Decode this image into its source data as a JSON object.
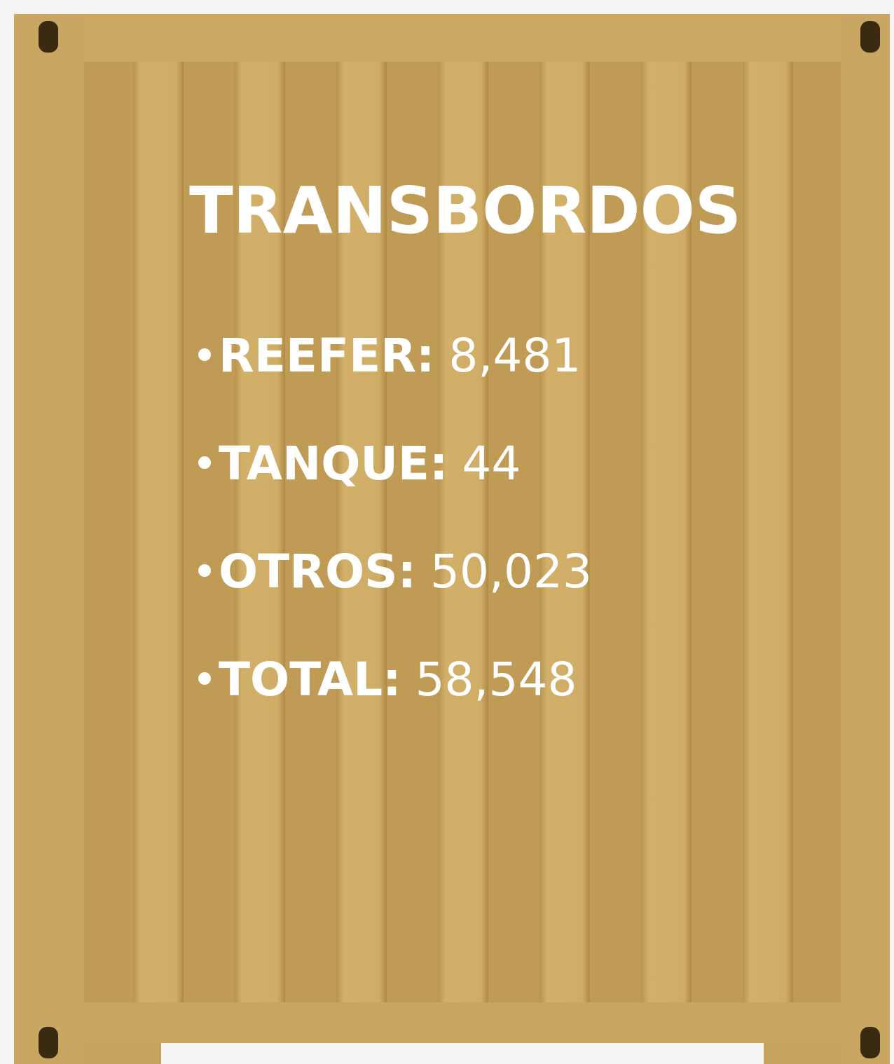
{
  "title": "TRANSBORDOS",
  "items": [
    {
      "label": "REEFER:",
      "value": "8,481"
    },
    {
      "label": "TANQUE:",
      "value": "44"
    },
    {
      "label": "OTROS:",
      "value": "50,023"
    },
    {
      "label": "TOTAL:",
      "value": "58,548"
    }
  ]
}
